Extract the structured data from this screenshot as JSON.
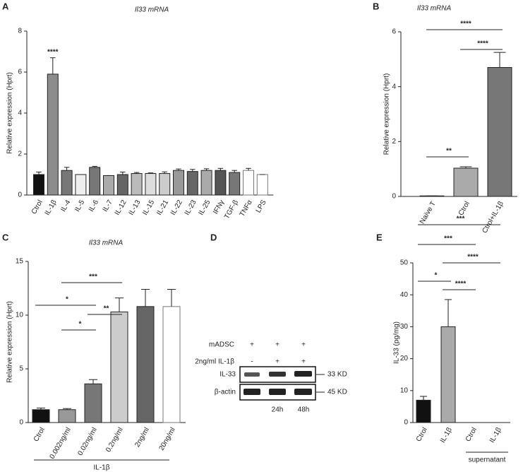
{
  "chart_data": [
    {
      "type": "bar",
      "panel": "A",
      "title": "Il33 mRNA",
      "ylabel": "Relative expression (Hprt)",
      "categories": [
        "Ctrol",
        "IL-1β",
        "IL-4",
        "IL-5",
        "IL-6",
        "IL-7",
        "IL-12",
        "IL-13",
        "IL-15",
        "IL-21",
        "IL-22",
        "IL-23",
        "IL-25",
        "IFNγ",
        "TGF-β",
        "TNFα",
        "LPS"
      ],
      "values": [
        1.0,
        5.9,
        1.2,
        1.0,
        1.35,
        0.95,
        1.0,
        1.05,
        1.05,
        1.05,
        1.2,
        1.15,
        1.2,
        1.2,
        1.1,
        1.2,
        1.0
      ],
      "errors": [
        0.12,
        0.8,
        0.15,
        0.0,
        0.05,
        0.0,
        0.12,
        0.05,
        0.03,
        0.08,
        0.07,
        0.1,
        0.08,
        0.1,
        0.1,
        0.1,
        0.0
      ],
      "colors": [
        "#111111",
        "#8c8c8c",
        "#777777",
        "#eeeeee",
        "#777777",
        "#aaaaaa",
        "#666666",
        "#bbbbbb",
        "#dddddd",
        "#cccccc",
        "#999999",
        "#666666",
        "#aaaaaa",
        "#555555",
        "#777777",
        "#ffffff",
        "#ffffff"
      ],
      "ylim": [
        0,
        8
      ],
      "yticks": [
        0,
        2,
        4,
        6,
        8
      ],
      "annotations": [
        "****"
      ]
    },
    {
      "type": "bar",
      "panel": "B",
      "title": "Il33 mRNA",
      "ylabel": "Relative expression (Hprt)",
      "categories": [
        "Naïve T",
        "Ctrol",
        "Ctrol+IL-1β"
      ],
      "values": [
        0.02,
        1.03,
        4.7
      ],
      "errors": [
        0.0,
        0.05,
        0.55
      ],
      "colors": [
        "#111111",
        "#aaaaaa",
        "#777777"
      ],
      "ylim": [
        0,
        6
      ],
      "yticks": [
        0,
        2,
        4,
        6
      ],
      "annotations": [
        "****",
        "****",
        "**"
      ]
    },
    {
      "type": "bar",
      "panel": "C",
      "title": "Il33 mRNA",
      "ylabel": "Relative expression (Hprt)",
      "categories": [
        "Ctrol",
        "0.002ng/ml",
        "0.02ng/ml",
        "0.2ng/ml",
        "2ng/ml",
        "20ng/ml"
      ],
      "values": [
        1.2,
        1.2,
        3.6,
        10.3,
        10.8,
        10.8
      ],
      "errors": [
        0.15,
        0.1,
        0.4,
        1.3,
        1.6,
        1.6
      ],
      "colors": [
        "#111111",
        "#999999",
        "#777777",
        "#cccccc",
        "#666666",
        "#ffffff"
      ],
      "ylim": [
        0,
        15
      ],
      "yticks": [
        0,
        5,
        10,
        15
      ],
      "annotations": [
        "***",
        "**",
        "*",
        "*"
      ],
      "group_label": "IL-1β"
    },
    {
      "type": "bar",
      "panel": "E",
      "ylabel": "IL-33 (pg/mg)",
      "categories": [
        "Ctrol",
        "IL-1β",
        "Ctrol",
        "IL-1β"
      ],
      "values": [
        7,
        30,
        0,
        0
      ],
      "errors": [
        1.2,
        8.5,
        0,
        0
      ],
      "colors": [
        "#111111",
        "#aaaaaa",
        "#ffffff",
        "#ffffff"
      ],
      "ylim": [
        0,
        50
      ],
      "yticks": [
        0,
        10,
        20,
        30,
        40,
        50
      ],
      "annotations": [
        "***",
        "***",
        "****",
        "*",
        "****"
      ],
      "group_label": "supernatant"
    }
  ],
  "blot": {
    "panel": "D",
    "rows": [
      {
        "label": "mADSC",
        "marks": [
          "+",
          "+",
          "+"
        ]
      },
      {
        "label": "2ng/ml IL-1β",
        "marks": [
          "-",
          "+",
          "+"
        ]
      }
    ],
    "bands": [
      {
        "label": "IL-33",
        "size": "33 KD"
      },
      {
        "label": "β-actin",
        "size": "45 KD"
      }
    ],
    "times": [
      "24h",
      "48h"
    ]
  }
}
